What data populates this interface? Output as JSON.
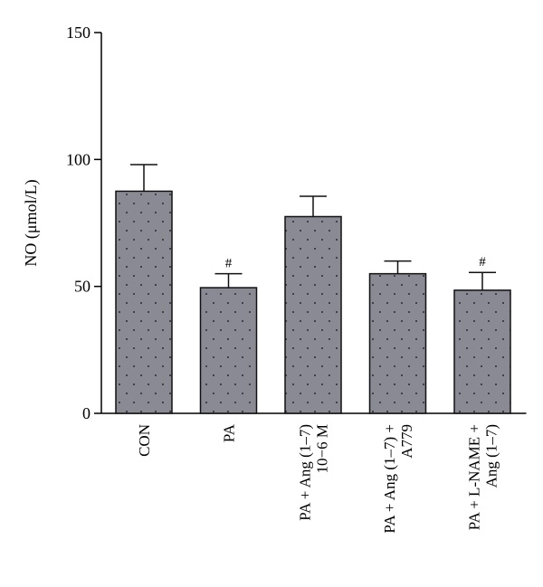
{
  "chart_data": {
    "type": "bar",
    "ylabel": "NO (μmol/L)",
    "xlabel": "",
    "ylim": [
      0,
      150
    ],
    "yticks": [
      0,
      50,
      100,
      150
    ],
    "categories": [
      [
        "CON"
      ],
      [
        "PA"
      ],
      [
        "PA + Ang (1–7)",
        "10−6 M"
      ],
      [
        "PA + Ang (1–7) +",
        "A779"
      ],
      [
        "PA + L-NAME +",
        "Ang (1–7)"
      ]
    ],
    "values": [
      87.5,
      49.5,
      77.5,
      55,
      48.5
    ],
    "errors": [
      10.5,
      5.5,
      8,
      5,
      7
    ],
    "annotations": [
      "",
      "#",
      "",
      "",
      "#"
    ],
    "bar_color": "#8a8a95",
    "dot_color": "#2a2a2a"
  }
}
